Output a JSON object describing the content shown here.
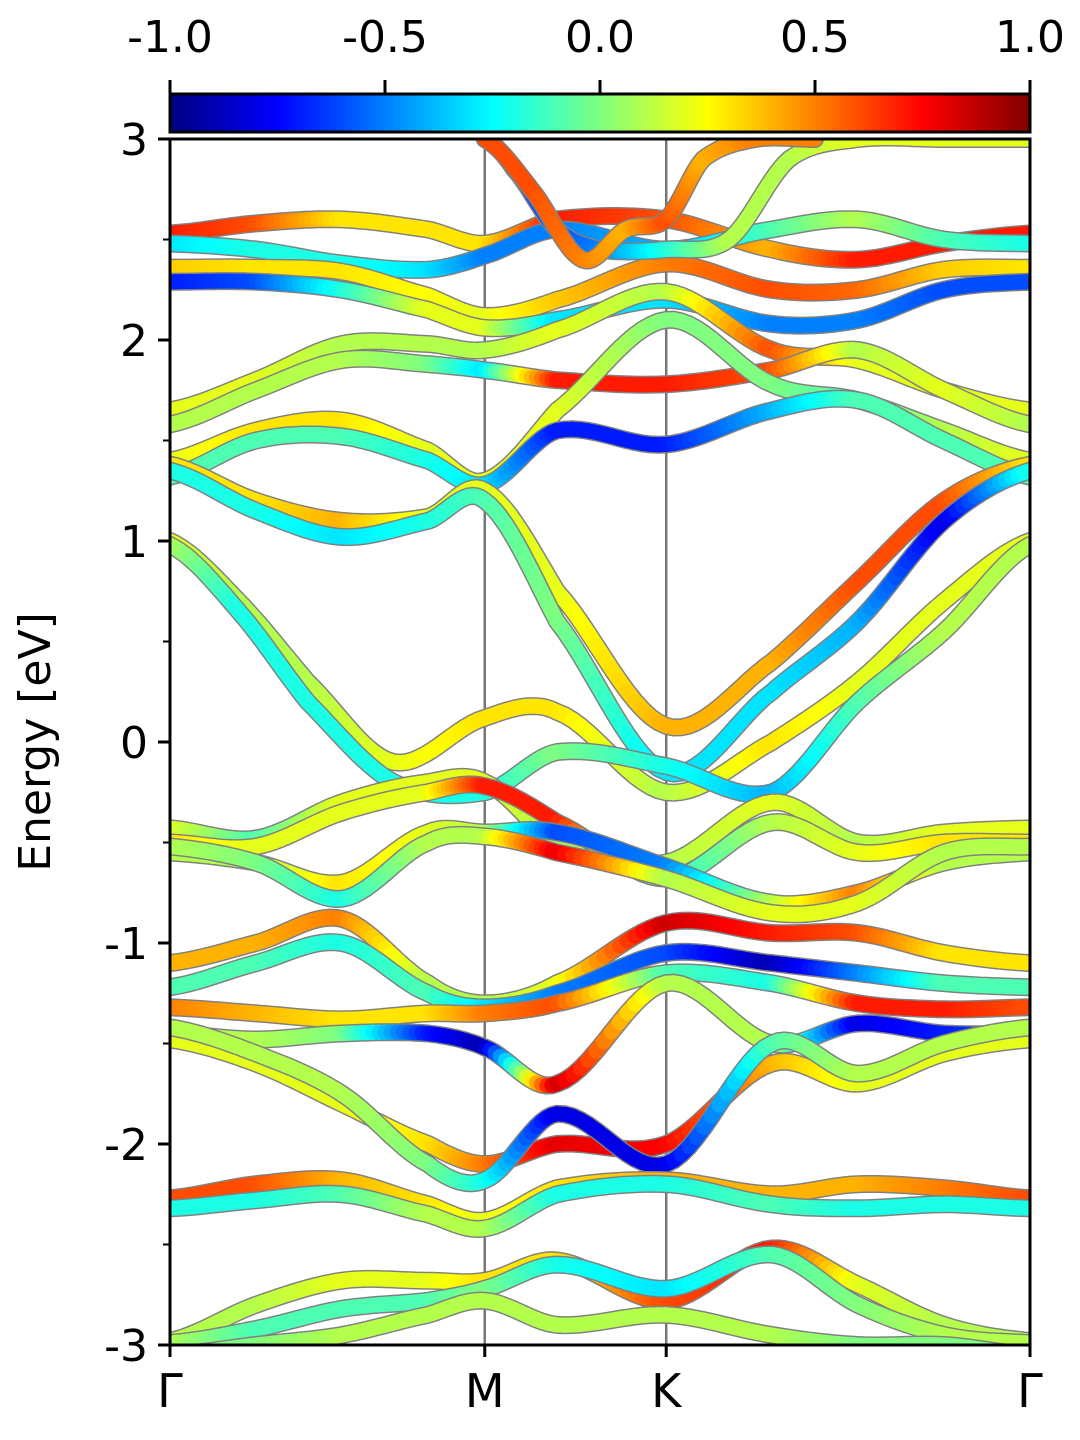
{
  "chart_data": {
    "type": "line",
    "title": "",
    "ylabel": "Energy [eV]",
    "xlabel": "",
    "ylim": [
      -3,
      3
    ],
    "y_ticks": [
      -3,
      -2,
      -1,
      0,
      1,
      2,
      3
    ],
    "y_tick_labels": [
      "-3",
      "-2",
      "-1",
      "0",
      "1",
      "2",
      "3"
    ],
    "x_ticks": [
      {
        "label": "Γ",
        "pos": 0.0
      },
      {
        "label": "M",
        "pos": 0.366
      },
      {
        "label": "K",
        "pos": 0.577
      },
      {
        "label": "Γ",
        "pos": 1.0
      }
    ],
    "x_tick_labels": [
      "Γ",
      "M",
      "K",
      "Γ"
    ],
    "colorbar": {
      "range": [
        -1.0,
        1.0
      ],
      "ticks": [
        -1.0,
        -0.5,
        0.0,
        0.5,
        1.0
      ],
      "tick_labels": [
        "-1.0",
        "-0.5",
        "0.0",
        "0.5",
        "1.0"
      ],
      "colormap": "jet"
    },
    "grid": false,
    "high_symmetry_lines": [
      "M",
      "K"
    ],
    "bands": [
      {
        "k": [
          0,
          0.1,
          0.2,
          0.3,
          0.366,
          0.45,
          0.577,
          0.7,
          0.8,
          0.9,
          1.0
        ],
        "e": [
          2.53,
          2.58,
          2.6,
          2.55,
          2.48,
          2.6,
          2.6,
          2.45,
          2.4,
          2.48,
          2.53
        ],
        "c": [
          0.7,
          0.6,
          0.3,
          0.3,
          0.3,
          0.7,
          0.6,
          0.4,
          0.7,
          0.7,
          0.7
        ]
      },
      {
        "k": [
          0,
          0.1,
          0.2,
          0.3,
          0.366,
          0.45,
          0.577,
          0.7,
          0.8,
          0.9,
          1.0
        ],
        "e": [
          2.48,
          2.45,
          2.38,
          2.35,
          2.42,
          2.55,
          2.45,
          2.55,
          2.6,
          2.5,
          2.48
        ],
        "c": [
          -0.3,
          -0.2,
          -0.2,
          -0.3,
          -0.5,
          -0.5,
          -0.4,
          -0.1,
          0.1,
          -0.1,
          -0.2
        ]
      },
      {
        "k": [
          0,
          0.1,
          0.2,
          0.3,
          0.366,
          0.45,
          0.577,
          0.7,
          0.8,
          0.9,
          1.0
        ],
        "e": [
          2.36,
          2.36,
          2.34,
          2.22,
          2.12,
          2.2,
          2.38,
          2.25,
          2.25,
          2.35,
          2.36
        ],
        "c": [
          0.35,
          0.3,
          0.3,
          0.25,
          0.2,
          0.35,
          0.5,
          0.6,
          0.55,
          0.35,
          0.3
        ]
      },
      {
        "k": [
          0,
          0.1,
          0.2,
          0.3,
          0.366,
          0.45,
          0.577,
          0.7,
          0.8,
          0.9,
          1.0
        ],
        "e": [
          2.29,
          2.29,
          2.25,
          2.15,
          2.06,
          2.1,
          2.2,
          2.08,
          2.1,
          2.25,
          2.29
        ],
        "c": [
          -0.7,
          -0.6,
          -0.2,
          0.2,
          0.2,
          -0.3,
          -0.3,
          -0.5,
          -0.5,
          -0.6,
          -0.6
        ]
      },
      {
        "k": [
          0,
          0.1,
          0.2,
          0.3,
          0.366,
          0.45,
          0.577,
          0.7,
          0.8,
          0.9,
          1.0
        ],
        "e": [
          1.65,
          1.8,
          1.98,
          1.98,
          1.95,
          2.05,
          2.24,
          1.95,
          1.9,
          1.75,
          1.65
        ],
        "c": [
          0.2,
          0.2,
          0.1,
          0.1,
          0.1,
          0.2,
          0.1,
          0.6,
          0.2,
          0.2,
          0.2
        ]
      },
      {
        "k": [
          0,
          0.1,
          0.2,
          0.3,
          0.366,
          0.45,
          0.577,
          0.7,
          0.8,
          0.9,
          1.0
        ],
        "e": [
          1.58,
          1.75,
          1.9,
          1.88,
          1.85,
          1.8,
          1.78,
          1.85,
          1.95,
          1.75,
          1.58
        ],
        "c": [
          0.1,
          0.1,
          0.1,
          0.0,
          -0.3,
          0.7,
          0.7,
          0.6,
          0.1,
          0.2,
          0.1
        ]
      },
      {
        "k": [
          0,
          0.1,
          0.2,
          0.3,
          0.366,
          0.45,
          0.577,
          0.7,
          0.8,
          0.9,
          1.0
        ],
        "e": [
          1.4,
          1.55,
          1.6,
          1.45,
          1.3,
          1.65,
          2.1,
          1.78,
          1.7,
          1.55,
          1.4
        ],
        "c": [
          0.2,
          0.3,
          0.3,
          0.2,
          0.2,
          0.2,
          0.0,
          0.0,
          -0.1,
          0.1,
          0.2
        ]
      },
      {
        "k": [
          0,
          0.1,
          0.2,
          0.3,
          0.366,
          0.45,
          0.577,
          0.7,
          0.8,
          0.9,
          1.0
        ],
        "e": [
          1.32,
          1.5,
          1.52,
          1.4,
          1.28,
          1.55,
          1.48,
          1.65,
          1.7,
          1.5,
          1.32
        ],
        "c": [
          -0.1,
          -0.1,
          -0.1,
          -0.2,
          -0.3,
          -0.7,
          -0.7,
          -0.4,
          -0.1,
          -0.1,
          -0.1
        ]
      },
      {
        "k": [
          0,
          0.1,
          0.2,
          0.3,
          0.366,
          0.45,
          0.577,
          0.7,
          0.8,
          0.9,
          1.0
        ],
        "e": [
          1.38,
          1.2,
          1.1,
          1.12,
          1.25,
          0.75,
          0.08,
          0.4,
          0.8,
          1.2,
          1.38
        ],
        "c": [
          0.3,
          0.3,
          0.4,
          0.2,
          0.2,
          0.2,
          0.4,
          0.4,
          0.6,
          0.6,
          0.3
        ]
      },
      {
        "k": [
          0,
          0.1,
          0.2,
          0.3,
          0.366,
          0.45,
          0.577,
          0.7,
          0.8,
          0.9,
          1.0
        ],
        "e": [
          1.35,
          1.15,
          1.02,
          1.1,
          1.2,
          0.6,
          -0.15,
          0.25,
          0.6,
          1.1,
          1.35
        ],
        "c": [
          -0.2,
          -0.2,
          -0.3,
          -0.2,
          -0.1,
          0.0,
          -0.3,
          -0.3,
          -0.4,
          -0.8,
          -0.2
        ]
      },
      {
        "k": [
          0,
          0.08,
          0.16,
          0.26,
          0.366,
          0.45,
          0.577,
          0.7,
          0.8,
          0.9,
          1.0
        ],
        "e": [
          1.0,
          0.7,
          0.3,
          -0.1,
          0.12,
          0.15,
          -0.25,
          0.0,
          0.3,
          0.7,
          1.0
        ],
        "c": [
          0.2,
          0.1,
          0.1,
          0.2,
          0.3,
          0.3,
          0.1,
          0.3,
          0.2,
          0.2,
          0.2
        ]
      },
      {
        "k": [
          0,
          0.08,
          0.16,
          0.26,
          0.366,
          0.45,
          0.577,
          0.7,
          0.8,
          0.9,
          1.0
        ],
        "e": [
          0.98,
          0.65,
          0.2,
          -0.2,
          -0.25,
          -0.05,
          -0.12,
          -0.25,
          0.2,
          0.55,
          0.98
        ],
        "c": [
          0.1,
          -0.2,
          -0.2,
          -0.2,
          -0.2,
          0.0,
          -0.2,
          -0.4,
          -0.1,
          0.1,
          0.1
        ]
      },
      {
        "k": [
          0,
          0.1,
          0.2,
          0.3,
          0.366,
          0.45,
          0.577,
          0.7,
          0.8,
          0.9,
          1.0
        ],
        "e": [
          -0.43,
          -0.48,
          -0.3,
          -0.2,
          -0.2,
          -0.5,
          -0.6,
          -0.3,
          -0.5,
          -0.45,
          -0.43
        ],
        "c": [
          0.2,
          -0.1,
          0.2,
          0.2,
          0.2,
          0.1,
          0.1,
          0.2,
          0.1,
          0.2,
          0.2
        ]
      },
      {
        "k": [
          0,
          0.1,
          0.2,
          0.3,
          0.366,
          0.45,
          0.577,
          0.7,
          0.8,
          0.9,
          1.0
        ],
        "e": [
          -0.5,
          -0.52,
          -0.35,
          -0.25,
          -0.22,
          -0.4,
          -0.68,
          -0.4,
          -0.55,
          -0.5,
          -0.5
        ],
        "c": [
          0.3,
          0.2,
          0.2,
          0.2,
          0.7,
          0.7,
          -0.2,
          0.1,
          0.2,
          0.3,
          0.3
        ]
      },
      {
        "k": [
          0,
          0.1,
          0.2,
          0.3,
          0.366,
          0.45,
          0.577,
          0.7,
          0.8,
          0.9,
          1.0
        ],
        "e": [
          -0.55,
          -0.6,
          -0.7,
          -0.45,
          -0.45,
          -0.45,
          -0.62,
          -0.8,
          -0.75,
          -0.6,
          -0.55
        ],
        "c": [
          0.1,
          0.1,
          0.3,
          0.2,
          0.1,
          -0.6,
          -0.5,
          0.1,
          0.5,
          0.1,
          0.1
        ]
      },
      {
        "k": [
          0,
          0.1,
          0.2,
          0.3,
          0.366,
          0.45,
          0.577,
          0.7,
          0.8,
          0.9,
          1.0
        ],
        "e": [
          -0.52,
          -0.6,
          -0.78,
          -0.5,
          -0.47,
          -0.55,
          -0.68,
          -0.85,
          -0.8,
          -0.55,
          -0.52
        ],
        "c": [
          0.1,
          0.0,
          -0.2,
          0.1,
          0.1,
          0.8,
          0.1,
          0.2,
          0.2,
          0.1,
          0.1
        ]
      },
      {
        "k": [
          0,
          0.1,
          0.2,
          0.3,
          0.366,
          0.45,
          0.577,
          0.7,
          0.8,
          0.9,
          1.0
        ],
        "e": [
          -1.1,
          -1.0,
          -0.88,
          -1.2,
          -1.3,
          -1.2,
          -0.9,
          -0.95,
          -0.95,
          -1.05,
          -1.1
        ],
        "c": [
          0.4,
          0.4,
          0.5,
          0.1,
          0.1,
          0.2,
          0.85,
          0.7,
          0.6,
          0.3,
          0.3
        ]
      },
      {
        "k": [
          0,
          0.1,
          0.2,
          0.3,
          0.366,
          0.45,
          0.577,
          0.7,
          0.8,
          0.9,
          1.0
        ],
        "e": [
          -1.22,
          -1.1,
          -1.0,
          -1.25,
          -1.32,
          -1.25,
          -1.05,
          -1.1,
          -1.15,
          -1.2,
          -1.22
        ],
        "c": [
          -0.1,
          -0.1,
          -0.2,
          -0.1,
          -0.3,
          -0.5,
          -0.6,
          -0.9,
          -0.5,
          -0.1,
          -0.1
        ]
      },
      {
        "k": [
          0,
          0.1,
          0.2,
          0.3,
          0.366,
          0.45,
          0.577,
          0.7,
          0.8,
          0.9,
          1.0
        ],
        "e": [
          -1.32,
          -1.35,
          -1.38,
          -1.35,
          -1.35,
          -1.3,
          -1.15,
          -1.2,
          -1.3,
          -1.33,
          -1.32
        ],
        "c": [
          0.5,
          0.4,
          0.3,
          0.3,
          0.5,
          0.6,
          -0.1,
          -0.2,
          0.7,
          0.7,
          0.6
        ]
      },
      {
        "k": [
          0,
          0.1,
          0.2,
          0.3,
          0.366,
          0.45,
          0.577,
          0.7,
          0.8,
          0.9,
          1.0
        ],
        "e": [
          -1.45,
          -1.48,
          -1.45,
          -1.45,
          -1.52,
          -1.7,
          -1.2,
          -1.5,
          -1.4,
          -1.45,
          -1.45
        ],
        "c": [
          0.1,
          0.1,
          0.0,
          -0.7,
          -0.9,
          0.85,
          0.1,
          0.1,
          -0.8,
          -0.7,
          -0.6
        ]
      },
      {
        "k": [
          0,
          0.1,
          0.2,
          0.3,
          0.366,
          0.45,
          0.577,
          0.7,
          0.8,
          0.9,
          1.0
        ],
        "e": [
          -1.48,
          -1.6,
          -1.8,
          -2.0,
          -2.1,
          -2.0,
          -2.0,
          -1.6,
          -1.7,
          -1.55,
          -1.48
        ],
        "c": [
          0.2,
          0.2,
          0.2,
          0.3,
          0.5,
          0.8,
          0.75,
          0.4,
          0.2,
          0.2,
          0.2
        ]
      },
      {
        "k": [
          0,
          0.1,
          0.2,
          0.3,
          0.366,
          0.45,
          0.577,
          0.7,
          0.8,
          0.9,
          1.0
        ],
        "e": [
          -1.42,
          -1.55,
          -1.75,
          -2.1,
          -2.18,
          -1.85,
          -2.1,
          -1.5,
          -1.65,
          -1.5,
          -1.42
        ],
        "c": [
          0.1,
          0.1,
          0.1,
          0.0,
          -0.2,
          -0.8,
          -0.8,
          -0.1,
          0.1,
          0.1,
          0.1
        ]
      },
      {
        "k": [
          0,
          0.1,
          0.2,
          0.3,
          0.366,
          0.45,
          0.577,
          0.7,
          0.8,
          0.9,
          1.0
        ],
        "e": [
          -2.27,
          -2.2,
          -2.18,
          -2.3,
          -2.38,
          -2.22,
          -2.18,
          -2.25,
          -2.2,
          -2.22,
          -2.27
        ],
        "c": [
          0.6,
          0.6,
          0.4,
          0.3,
          0.2,
          0.3,
          0.4,
          0.4,
          0.4,
          0.5,
          0.6
        ]
      },
      {
        "k": [
          0,
          0.1,
          0.2,
          0.3,
          0.366,
          0.45,
          0.577,
          0.7,
          0.8,
          0.9,
          1.0
        ],
        "e": [
          -2.32,
          -2.28,
          -2.25,
          -2.35,
          -2.42,
          -2.25,
          -2.2,
          -2.3,
          -2.32,
          -2.3,
          -2.32
        ],
        "c": [
          -0.2,
          -0.2,
          -0.1,
          0.1,
          0.1,
          -0.2,
          -0.2,
          -0.1,
          -0.2,
          -0.2,
          -0.2
        ]
      },
      {
        "k": [
          0,
          0.1,
          0.2,
          0.3,
          0.366,
          0.45,
          0.577,
          0.7,
          0.8,
          0.9,
          1.0
        ],
        "e": [
          -2.98,
          -2.8,
          -2.68,
          -2.68,
          -2.68,
          -2.58,
          -2.78,
          -2.52,
          -2.7,
          -2.9,
          -2.98
        ],
        "c": [
          0.1,
          0.1,
          0.2,
          0.2,
          0.3,
          0.3,
          0.6,
          0.7,
          0.2,
          0.1,
          0.1
        ]
      },
      {
        "k": [
          0,
          0.1,
          0.2,
          0.3,
          0.366,
          0.45,
          0.577,
          0.7,
          0.8,
          0.9,
          1.0
        ],
        "e": [
          -2.99,
          -2.92,
          -2.82,
          -2.78,
          -2.72,
          -2.6,
          -2.72,
          -2.55,
          -2.8,
          -2.95,
          -2.99
        ],
        "c": [
          0.1,
          -0.1,
          -0.1,
          -0.1,
          0.0,
          -0.2,
          -0.3,
          -0.1,
          0.0,
          0.1,
          0.1
        ]
      },
      {
        "k": [
          0,
          0.1,
          0.2,
          0.3,
          0.366,
          0.45,
          0.577,
          0.7,
          0.8,
          0.9,
          1.0
        ],
        "e": [
          -3.05,
          -3.0,
          -2.95,
          -2.85,
          -2.78,
          -2.9,
          -2.85,
          -2.95,
          -3.0,
          -3.0,
          -3.05
        ],
        "c": [
          0.0,
          0.0,
          0.1,
          0.1,
          0.1,
          0.1,
          0.1,
          0.1,
          0.0,
          0.0,
          0.0
        ]
      },
      {
        "k": [
          0.366,
          0.4,
          0.45,
          0.5,
          0.577,
          0.65,
          0.72,
          0.8,
          0.9,
          1.0
        ],
        "e": [
          3.0,
          2.85,
          2.55,
          2.45,
          2.45,
          2.5,
          2.9,
          3.0,
          3.0,
          3.0
        ],
        "c": [
          -0.5,
          -0.6,
          -0.6,
          -0.5,
          -0.2,
          0.1,
          0.1,
          0.2,
          0.2,
          0.2
        ]
      },
      {
        "k": [
          0.366,
          0.42,
          0.48,
          0.53,
          0.577,
          0.62,
          0.68,
          0.75
        ],
        "e": [
          3.0,
          2.75,
          2.4,
          2.55,
          2.6,
          2.9,
          3.0,
          3.0
        ],
        "c": [
          0.6,
          0.6,
          0.5,
          0.4,
          0.6,
          0.4,
          0.5,
          0.5
        ]
      }
    ]
  }
}
